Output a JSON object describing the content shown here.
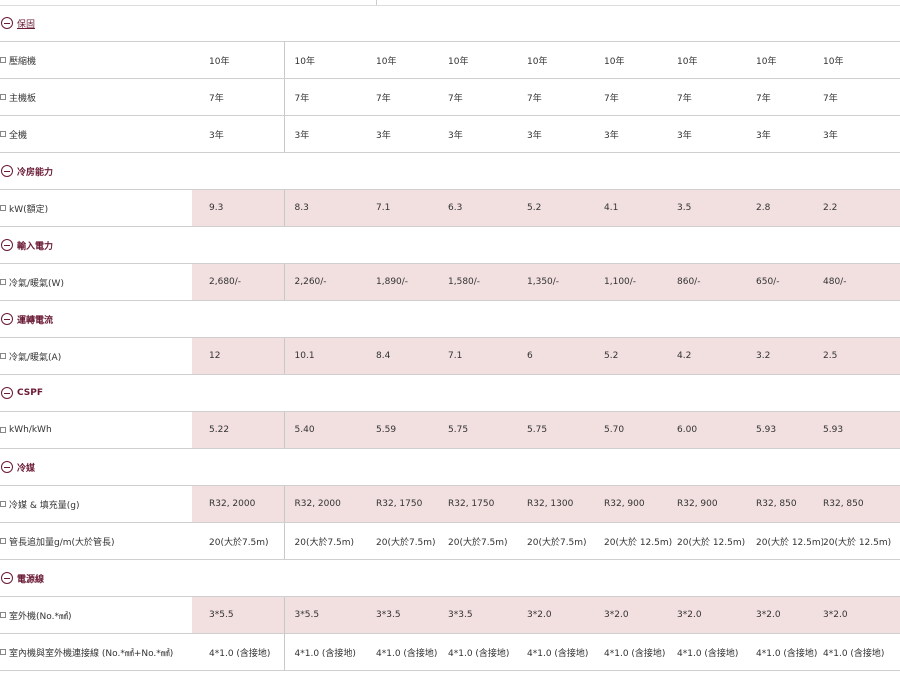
{
  "sections": [
    {
      "title": "保固",
      "underline": true,
      "rows": [
        {
          "label": "壓縮機",
          "shaded": false,
          "values": [
            "10年",
            "10年",
            "10年",
            "10年",
            "10年",
            "10年",
            "10年",
            "10年",
            "10年"
          ]
        },
        {
          "label": "主機板",
          "shaded": false,
          "values": [
            "7年",
            "7年",
            "7年",
            "7年",
            "7年",
            "7年",
            "7年",
            "7年",
            "7年"
          ]
        },
        {
          "label": "全機",
          "shaded": false,
          "values": [
            "3年",
            "3年",
            "3年",
            "3年",
            "3年",
            "3年",
            "3年",
            "3年",
            "3年"
          ]
        }
      ]
    },
    {
      "title": "冷房能力",
      "underline": false,
      "rows": [
        {
          "label": "kW(額定)",
          "shaded": true,
          "values": [
            "9.3",
            "8.3",
            "7.1",
            "6.3",
            "5.2",
            "4.1",
            "3.5",
            "2.8",
            "2.2"
          ]
        }
      ]
    },
    {
      "title": "輸入電力",
      "underline": false,
      "rows": [
        {
          "label": "冷氣/暖氣(W)",
          "shaded": true,
          "values": [
            "2,680/-",
            "2,260/-",
            "1,890/-",
            "1,580/-",
            "1,350/-",
            "1,100/-",
            "860/-",
            "650/-",
            "480/-"
          ]
        }
      ]
    },
    {
      "title": "運轉電流",
      "underline": false,
      "rows": [
        {
          "label": "冷氣/暖氣(A)",
          "shaded": true,
          "values": [
            "12",
            "10.1",
            "8.4",
            "7.1",
            "6",
            "5.2",
            "4.2",
            "3.2",
            "2.5"
          ]
        }
      ]
    },
    {
      "title": "CSPF",
      "underline": false,
      "rows": [
        {
          "label": "kWh/kWh",
          "shaded": true,
          "values": [
            "5.22",
            "5.40",
            "5.59",
            "5.75",
            "5.75",
            "5.70",
            "6.00",
            "5.93",
            "5.93"
          ]
        }
      ]
    },
    {
      "title": "冷媒",
      "underline": false,
      "rows": [
        {
          "label": "冷媒 & 填充量(g)",
          "shaded": true,
          "values": [
            "R32, 2000",
            "R32, 2000",
            "R32, 1750",
            "R32, 1750",
            "R32, 1300",
            "R32, 900",
            "R32, 900",
            "R32, 850",
            "R32, 850"
          ]
        },
        {
          "label": "管長追加量g/m(大於管長)",
          "shaded": false,
          "values": [
            "20(大於7.5m)",
            "20(大於7.5m)",
            "20(大於7.5m)",
            "20(大於7.5m)",
            "20(大於7.5m)",
            "20(大於 12.5m)",
            "20(大於 12.5m)",
            "20(大於 12.5m)",
            "20(大於 12.5m)"
          ]
        }
      ]
    },
    {
      "title": "電源線",
      "underline": false,
      "rows": [
        {
          "label": "室外機(No.*㎟)",
          "shaded": true,
          "values": [
            "3*5.5",
            "3*5.5",
            "3*3.5",
            "3*3.5",
            "3*2.0",
            "3*2.0",
            "3*2.0",
            "3*2.0",
            "3*2.0"
          ]
        },
        {
          "label": "室內機與室外機連接線 (No.*㎟+No.*㎟)",
          "shaded": false,
          "values": [
            "4*1.0 (含接地)",
            "4*1.0 (含接地)",
            "4*1.0 (含接地)",
            "4*1.0 (含接地)",
            "4*1.0 (含接地)",
            "4*1.0 (含接地)",
            "4*1.0 (含接地)",
            "4*1.0 (含接地)",
            "4*1.0 (含接地)"
          ]
        }
      ]
    }
  ],
  "colors": {
    "accent": "#6a1a34",
    "shade": "#f2dfe0"
  },
  "icons": {
    "section": "minus-circle-icon",
    "row": "checkbox-icon"
  }
}
